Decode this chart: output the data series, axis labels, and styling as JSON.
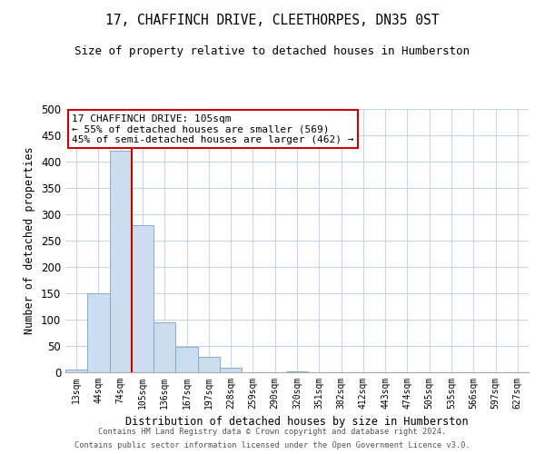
{
  "title": "17, CHAFFINCH DRIVE, CLEETHORPES, DN35 0ST",
  "subtitle": "Size of property relative to detached houses in Humberston",
  "xlabel": "Distribution of detached houses by size in Humberston",
  "ylabel": "Number of detached properties",
  "bin_labels": [
    "13sqm",
    "44sqm",
    "74sqm",
    "105sqm",
    "136sqm",
    "167sqm",
    "197sqm",
    "228sqm",
    "259sqm",
    "290sqm",
    "320sqm",
    "351sqm",
    "382sqm",
    "412sqm",
    "443sqm",
    "474sqm",
    "505sqm",
    "535sqm",
    "566sqm",
    "597sqm",
    "627sqm"
  ],
  "bar_heights": [
    5,
    150,
    420,
    280,
    95,
    48,
    30,
    8,
    0,
    0,
    2,
    0,
    0,
    0,
    0,
    0,
    0,
    0,
    0,
    0,
    0
  ],
  "bar_color": "#ccddf0",
  "bar_edge_color": "#88aad0",
  "vline_color": "#cc0000",
  "annotation_title": "17 CHAFFINCH DRIVE: 105sqm",
  "annotation_line1": "← 55% of detached houses are smaller (569)",
  "annotation_line2": "45% of semi-detached houses are larger (462) →",
  "annotation_box_color": "#ffffff",
  "annotation_box_edge": "#cc0000",
  "footer1": "Contains HM Land Registry data © Crown copyright and database right 2024.",
  "footer2": "Contains public sector information licensed under the Open Government Licence v3.0.",
  "ylim": [
    0,
    500
  ],
  "background_color": "#ffffff",
  "grid_color": "#c8d4e8"
}
